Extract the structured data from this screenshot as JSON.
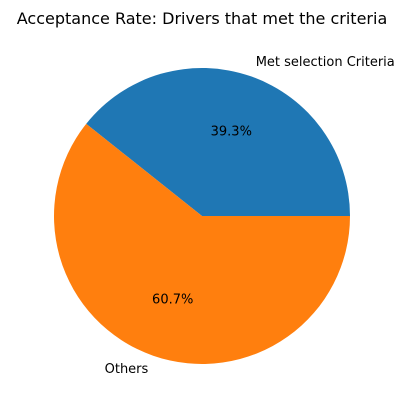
{
  "chart_data": {
    "type": "pie",
    "title": "Acceptance Rate: Drivers that met the criteria",
    "labels": [
      "Met selection Criteria",
      "Others"
    ],
    "values": [
      39.3,
      60.7
    ],
    "value_labels": [
      "39.3%",
      "60.7%"
    ],
    "colors": [
      "#1f77b4",
      "#ff7f0e"
    ],
    "start_angle_deg": 0,
    "direction": "counterclockwise",
    "legend": "none"
  }
}
